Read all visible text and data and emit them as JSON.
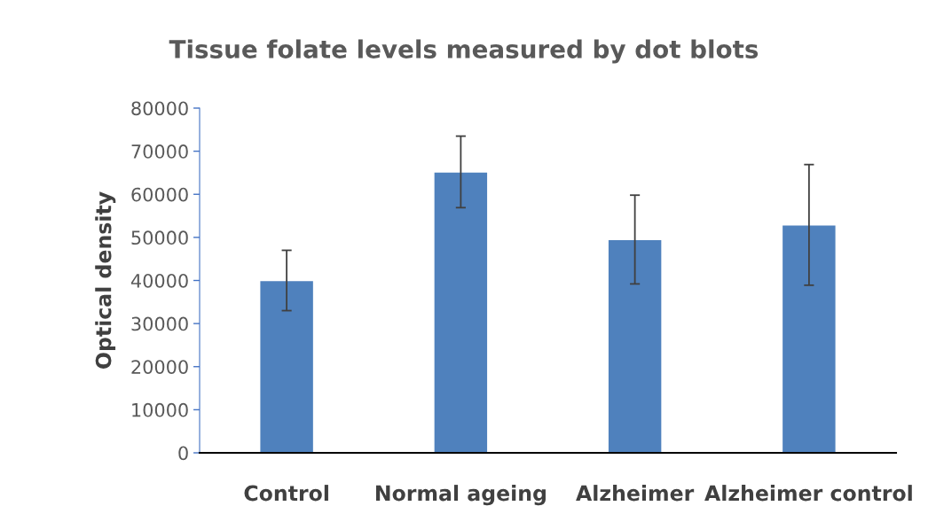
{
  "chart_data": {
    "type": "bar",
    "title": "Tissue folate levels measured by dot blots",
    "ylabel": "Optical density",
    "categories": [
      "Control",
      "Normal ageing",
      "Alzheimer",
      "Alzheimer control"
    ],
    "values": [
      40000,
      65200,
      49500,
      52900
    ],
    "errors": [
      7000,
      8300,
      10300,
      14000
    ],
    "color": "#4f81bd",
    "ylim": [
      0,
      80000
    ],
    "yticks": [
      0,
      10000,
      20000,
      30000,
      40000,
      50000,
      60000,
      70000,
      80000
    ],
    "grid": false
  }
}
